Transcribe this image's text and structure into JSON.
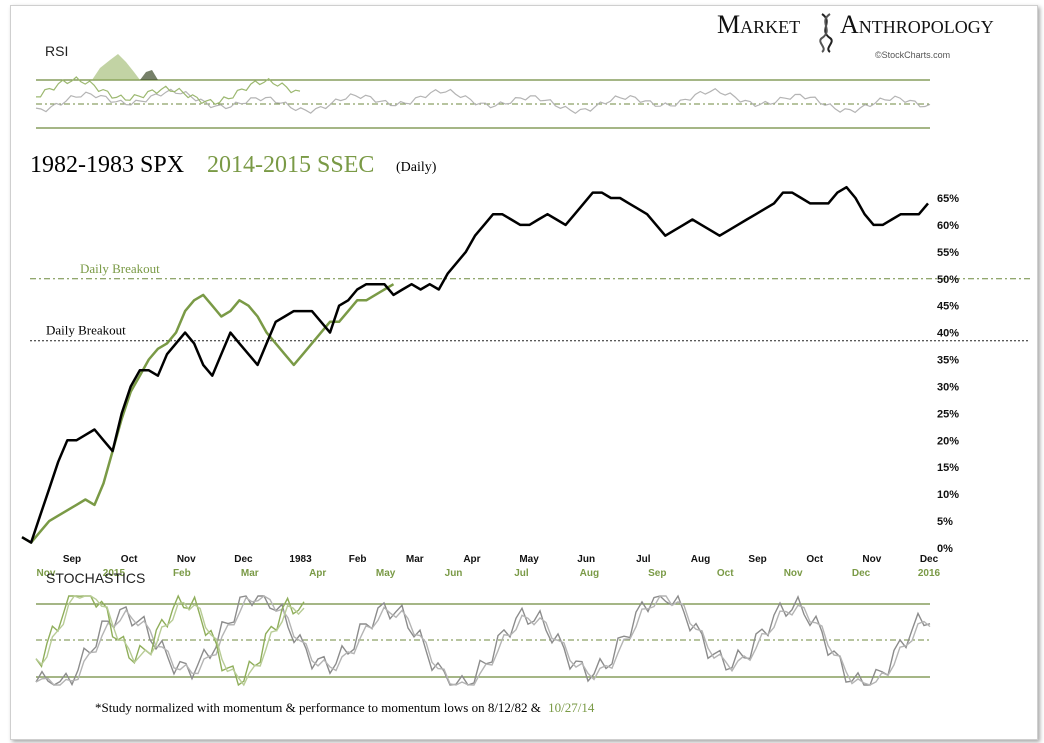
{
  "branding": {
    "logo_left": "Market",
    "logo_right": "Anthropology",
    "source": "©StockCharts.com"
  },
  "colors": {
    "series_a": "#000000",
    "series_b": "#7a9a46",
    "grid": "#6f8a3f",
    "gray_a": "#8c8c8c",
    "gray_b": "#b4b4b4"
  },
  "panels": {
    "rsi_label": "RSI",
    "stoch_label": "STOCHASTICS"
  },
  "chart_data": {
    "type": "line",
    "title_part1": "1982-1983 SPX",
    "title_part2": "2014-2015 SSEC",
    "title_part3": "(Daily)",
    "ylim": [
      0,
      70
    ],
    "yticks": [
      "0%",
      "5%",
      "10%",
      "15%",
      "20%",
      "25%",
      "30%",
      "35%",
      "40%",
      "45%",
      "50%",
      "55%",
      "60%",
      "65%"
    ],
    "xticks_top": [
      "Sep",
      "Oct",
      "Nov",
      "Dec",
      "1983",
      "Feb",
      "Mar",
      "Apr",
      "May",
      "Jun",
      "Jul",
      "Aug",
      "Sep",
      "Oct",
      "Nov",
      "Dec"
    ],
    "xticks_bottom": [
      "Nov",
      "2015",
      "Feb",
      "Mar",
      "Apr",
      "May",
      "Jun",
      "Jul",
      "Aug",
      "Sep",
      "Oct",
      "Nov",
      "Dec",
      "2016"
    ],
    "annotations": [
      {
        "text": "Daily Breakout",
        "series": "2014-2015 SSEC",
        "level": 50
      },
      {
        "text": "Daily Breakout",
        "series": "1982-1983 SPX",
        "level": 38.5
      }
    ],
    "footnote_part1": "*Study normalized with momentum & performance to momentum lows on 8/12/82 &",
    "footnote_part2": "10/27/14",
    "series": [
      {
        "name": "1982-1983 SPX",
        "t": [
          0,
          3,
          6,
          9,
          12,
          15,
          18,
          21,
          24,
          27,
          30,
          33,
          36,
          39,
          42,
          45,
          48,
          51,
          54,
          57,
          60,
          63,
          66,
          69,
          72,
          75,
          78,
          81,
          84,
          87,
          90,
          93,
          96,
          99,
          102,
          105,
          108,
          111,
          114,
          117,
          120,
          123,
          126,
          129,
          132,
          135,
          138,
          141,
          144,
          147,
          150,
          153,
          156,
          159,
          162,
          165,
          168,
          171,
          174,
          177,
          180,
          183,
          186,
          189,
          192,
          195,
          198,
          201,
          204,
          207,
          210,
          213,
          216,
          219,
          222,
          225,
          228,
          231,
          234,
          237,
          240,
          243,
          246,
          249,
          252,
          255,
          258,
          261,
          264,
          267,
          270,
          273,
          276,
          279,
          282,
          285,
          288,
          291,
          294,
          297,
          300
        ],
        "values": [
          2,
          1,
          6,
          11,
          16,
          20,
          20,
          21,
          22,
          20,
          18,
          25,
          30,
          33,
          33,
          32,
          36,
          38,
          40,
          38,
          34,
          32,
          36,
          40,
          38,
          36,
          34,
          38,
          42,
          43,
          44,
          44,
          44,
          42,
          40,
          45,
          46,
          48,
          49,
          49,
          49,
          47,
          48,
          49,
          48,
          49,
          48,
          51,
          53,
          55,
          58,
          60,
          62,
          62,
          61,
          60,
          60,
          61,
          62,
          61,
          60,
          62,
          64,
          66,
          66,
          65,
          65,
          64,
          63,
          62,
          60,
          58,
          59,
          60,
          61,
          60,
          59,
          58,
          59,
          60,
          61,
          62,
          63,
          64,
          66,
          66,
          65,
          64,
          64,
          64,
          66,
          67,
          65,
          62,
          60,
          60,
          61,
          62,
          62,
          62,
          64
        ]
      },
      {
        "name": "2014-2015 SSEC",
        "t": [
          0,
          3,
          6,
          9,
          12,
          15,
          18,
          21,
          24,
          27,
          30,
          33,
          36,
          39,
          42,
          45,
          48,
          51,
          54,
          57,
          60,
          63,
          66,
          69,
          72,
          75,
          78,
          81,
          84,
          87,
          90,
          93,
          96,
          99,
          102,
          105,
          108,
          111,
          114,
          117,
          120,
          123
        ],
        "values": [
          2,
          1,
          3,
          5,
          6,
          7,
          8,
          9,
          8,
          12,
          18,
          24,
          29,
          32,
          35,
          37,
          38,
          40,
          44,
          46,
          47,
          45,
          43,
          44,
          46,
          45,
          43,
          40,
          38,
          36,
          34,
          36,
          38,
          40,
          42,
          42,
          44,
          46,
          46,
          47,
          48,
          49
        ]
      }
    ]
  }
}
